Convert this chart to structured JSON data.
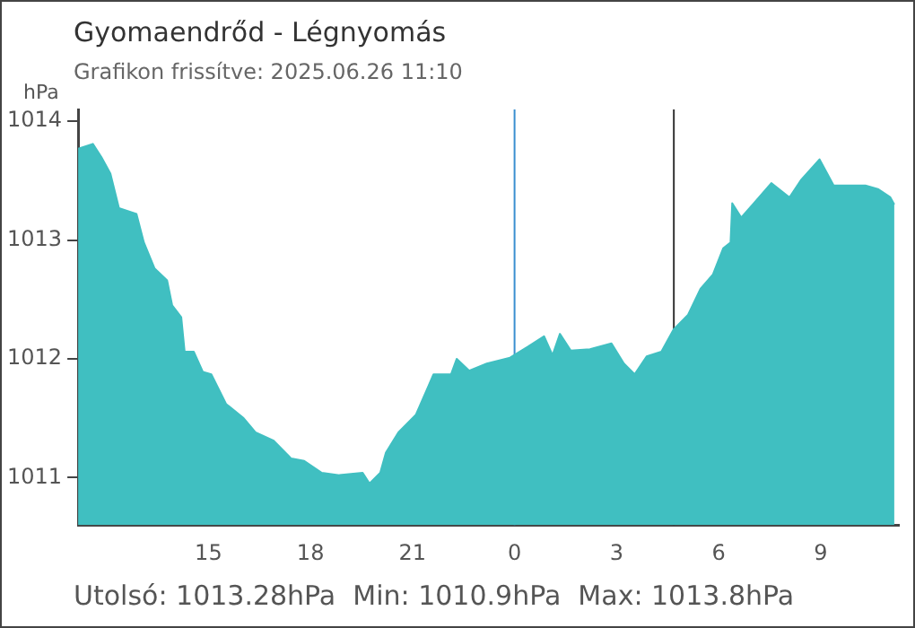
{
  "chart_data": {
    "type": "area",
    "title": "Gyomaendrőd - Légnyomás",
    "subtitle": "Grafikon frissítve: 2025.06.26 11:10",
    "ylabel": "hPa",
    "annotations": [
      "Utolsó: 1013.28hPa  Min: 1010.9hPa  Max: 1013.8hPa"
    ],
    "x": [
      "2025-06-25T11:10",
      "2025-06-25T11:36",
      "2025-06-25T11:51",
      "2025-06-25T12:07",
      "2025-06-25T12:22",
      "2025-06-25T12:53",
      "2025-06-25T13:06",
      "2025-06-25T13:25",
      "2025-06-25T13:47",
      "2025-06-25T13:56",
      "2025-06-25T14:12",
      "2025-06-25T14:18",
      "2025-06-25T14:34",
      "2025-06-25T14:50",
      "2025-06-25T15:05",
      "2025-06-25T15:31",
      "2025-06-25T16:02",
      "2025-06-25T16:23",
      "2025-06-25T16:55",
      "2025-06-25T17:26",
      "2025-06-25T17:49",
      "2025-06-25T18:20",
      "2025-06-25T18:51",
      "2025-06-25T19:32",
      "2025-06-25T19:44",
      "2025-06-25T20:03",
      "2025-06-25T20:13",
      "2025-06-25T20:35",
      "2025-06-25T21:06",
      "2025-06-25T21:28",
      "2025-06-25T21:37",
      "2025-06-25T22:08",
      "2025-06-25T22:18",
      "2025-06-25T22:40",
      "2025-06-25T23:11",
      "2025-06-25T23:52",
      "2025-06-26T00:23",
      "2025-06-26T00:52",
      "2025-06-26T01:07",
      "2025-06-26T01:20",
      "2025-06-26T01:39",
      "2025-06-26T02:13",
      "2025-06-26T02:51",
      "2025-06-26T03:13",
      "2025-06-26T03:32",
      "2025-06-26T03:53",
      "2025-06-26T04:19",
      "2025-06-26T04:41",
      "2025-06-26T05:06",
      "2025-06-26T05:28",
      "2025-06-26T05:50",
      "2025-06-26T06:08",
      "2025-06-26T06:21",
      "2025-06-26T06:24",
      "2025-06-26T06:40",
      "2025-06-26T07:02",
      "2025-06-26T07:33",
      "2025-06-26T08:05",
      "2025-06-26T08:26",
      "2025-06-26T08:58",
      "2025-06-26T09:23",
      "2025-06-26T09:48",
      "2025-06-26T10:19",
      "2025-06-26T10:41",
      "2025-06-26T11:03",
      "2025-06-26T11:10"
    ],
    "series": [
      {
        "color": "#40bfc1",
        "values": [
          1013.77,
          1013.81,
          1013.7,
          1013.56,
          1013.27,
          1013.22,
          1012.98,
          1012.76,
          1012.66,
          1012.45,
          1012.35,
          1012.06,
          1012.06,
          1011.89,
          1011.87,
          1011.62,
          1011.5,
          1011.38,
          1011.31,
          1011.16,
          1011.14,
          1011.04,
          1011.02,
          1011.04,
          1010.95,
          1011.04,
          1011.21,
          1011.38,
          1011.53,
          1011.77,
          1011.87,
          1011.87,
          1012.0,
          1011.9,
          1011.96,
          1012.01,
          1012.1,
          1012.19,
          1012.03,
          1012.21,
          1012.07,
          1012.08,
          1012.13,
          1011.96,
          1011.87,
          1012.02,
          1012.06,
          1012.25,
          1012.37,
          1012.59,
          1012.71,
          1012.93,
          1012.98,
          1013.31,
          1013.19,
          1013.31,
          1013.48,
          1013.36,
          1013.51,
          1013.68,
          1013.46,
          1013.46,
          1013.46,
          1013.43,
          1013.36,
          1013.3
        ]
      }
    ],
    "xlim": [
      "2025-06-25T11:10",
      "2025-06-26T11:18"
    ],
    "xticks": [
      {
        "value": "2025-06-25T11:10",
        "label": null
      },
      {
        "value": "2025-06-25T15:00",
        "label": "15"
      },
      {
        "value": "2025-06-25T18:00",
        "label": "18"
      },
      {
        "value": "2025-06-25T21:00",
        "label": "21"
      },
      {
        "value": "2025-06-26T00:00",
        "label": "0"
      },
      {
        "value": "2025-06-26T03:00",
        "label": "3"
      },
      {
        "value": "2025-06-26T06:00",
        "label": "6"
      },
      {
        "value": "2025-06-26T09:00",
        "label": "9"
      }
    ],
    "ylim": [
      1010.6,
      1014.1
    ],
    "yticks": [
      1011,
      1012,
      1013,
      1014
    ],
    "ref_lines": [
      {
        "axis": "x",
        "value": "2025-06-26T00:00",
        "color": "#3a8fd0"
      },
      {
        "axis": "x",
        "value": "2025-06-26T04:41",
        "color": "#333333"
      }
    ],
    "grid": false,
    "legend": false,
    "marker": "none",
    "line_style": "solid"
  }
}
